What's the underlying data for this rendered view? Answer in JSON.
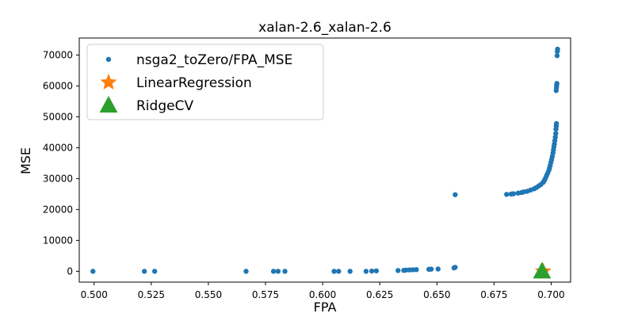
{
  "chart_data": {
    "type": "scatter",
    "title": "xalan-2.6_xalan-2.6",
    "xlabel": "FPA",
    "ylabel": "MSE",
    "xlim": [
      0.4935,
      0.7085
    ],
    "ylim": [
      -3500,
      75500
    ],
    "xticks": [
      "0.500",
      "0.525",
      "0.550",
      "0.575",
      "0.600",
      "0.625",
      "0.650",
      "0.675",
      "0.700"
    ],
    "yticks": [
      "0",
      "10000",
      "20000",
      "30000",
      "40000",
      "50000",
      "60000",
      "70000"
    ],
    "legend_position": "upper-left",
    "series": [
      {
        "name": "nsga2_toZero/FPA_MSE",
        "marker": "circle",
        "color": "#1f77b4",
        "points": [
          [
            0.4995,
            0
          ],
          [
            0.522,
            0
          ],
          [
            0.5265,
            0
          ],
          [
            0.5665,
            0
          ],
          [
            0.5785,
            0
          ],
          [
            0.5805,
            0
          ],
          [
            0.5835,
            0
          ],
          [
            0.605,
            0
          ],
          [
            0.607,
            0
          ],
          [
            0.612,
            0
          ],
          [
            0.619,
            0
          ],
          [
            0.6215,
            80
          ],
          [
            0.6235,
            150
          ],
          [
            0.633,
            250
          ],
          [
            0.6355,
            300
          ],
          [
            0.6365,
            400
          ],
          [
            0.638,
            450
          ],
          [
            0.6395,
            500
          ],
          [
            0.641,
            550
          ],
          [
            0.6465,
            650
          ],
          [
            0.6475,
            700
          ],
          [
            0.6505,
            750
          ],
          [
            0.6575,
            1100
          ],
          [
            0.658,
            1300
          ],
          [
            0.658,
            24800
          ],
          [
            0.6805,
            24900
          ],
          [
            0.6825,
            25000
          ],
          [
            0.6835,
            25100
          ],
          [
            0.6855,
            25300
          ],
          [
            0.687,
            25500
          ],
          [
            0.688,
            25700
          ],
          [
            0.6895,
            25900
          ],
          [
            0.691,
            26300
          ],
          [
            0.6925,
            26700
          ],
          [
            0.6935,
            27100
          ],
          [
            0.6945,
            27600
          ],
          [
            0.6955,
            28100
          ],
          [
            0.6965,
            28800
          ],
          [
            0.697,
            29400
          ],
          [
            0.6975,
            30100
          ],
          [
            0.698,
            31000
          ],
          [
            0.6985,
            31800
          ],
          [
            0.699,
            32700
          ],
          [
            0.6993,
            33500
          ],
          [
            0.6996,
            34300
          ],
          [
            0.6999,
            35300
          ],
          [
            0.7002,
            36200
          ],
          [
            0.7005,
            37200
          ],
          [
            0.7008,
            38300
          ],
          [
            0.701,
            39300
          ],
          [
            0.7012,
            40300
          ],
          [
            0.7014,
            41200
          ],
          [
            0.7016,
            42300
          ],
          [
            0.7018,
            43400
          ],
          [
            0.702,
            44600
          ],
          [
            0.7021,
            46000
          ],
          [
            0.7022,
            47000
          ],
          [
            0.7023,
            47800
          ],
          [
            0.7022,
            58500
          ],
          [
            0.7023,
            59400
          ],
          [
            0.7024,
            60200
          ],
          [
            0.7025,
            60800
          ],
          [
            0.7026,
            69800
          ],
          [
            0.7027,
            71200
          ],
          [
            0.7028,
            71900
          ]
        ]
      },
      {
        "name": "LinearRegression",
        "marker": "star",
        "color": "#ff7f0e",
        "points": [
          [
            0.6965,
            0
          ]
        ]
      },
      {
        "name": "RidgeCV",
        "marker": "triangle",
        "color": "#2ca02c",
        "points": [
          [
            0.696,
            0
          ]
        ]
      }
    ]
  }
}
